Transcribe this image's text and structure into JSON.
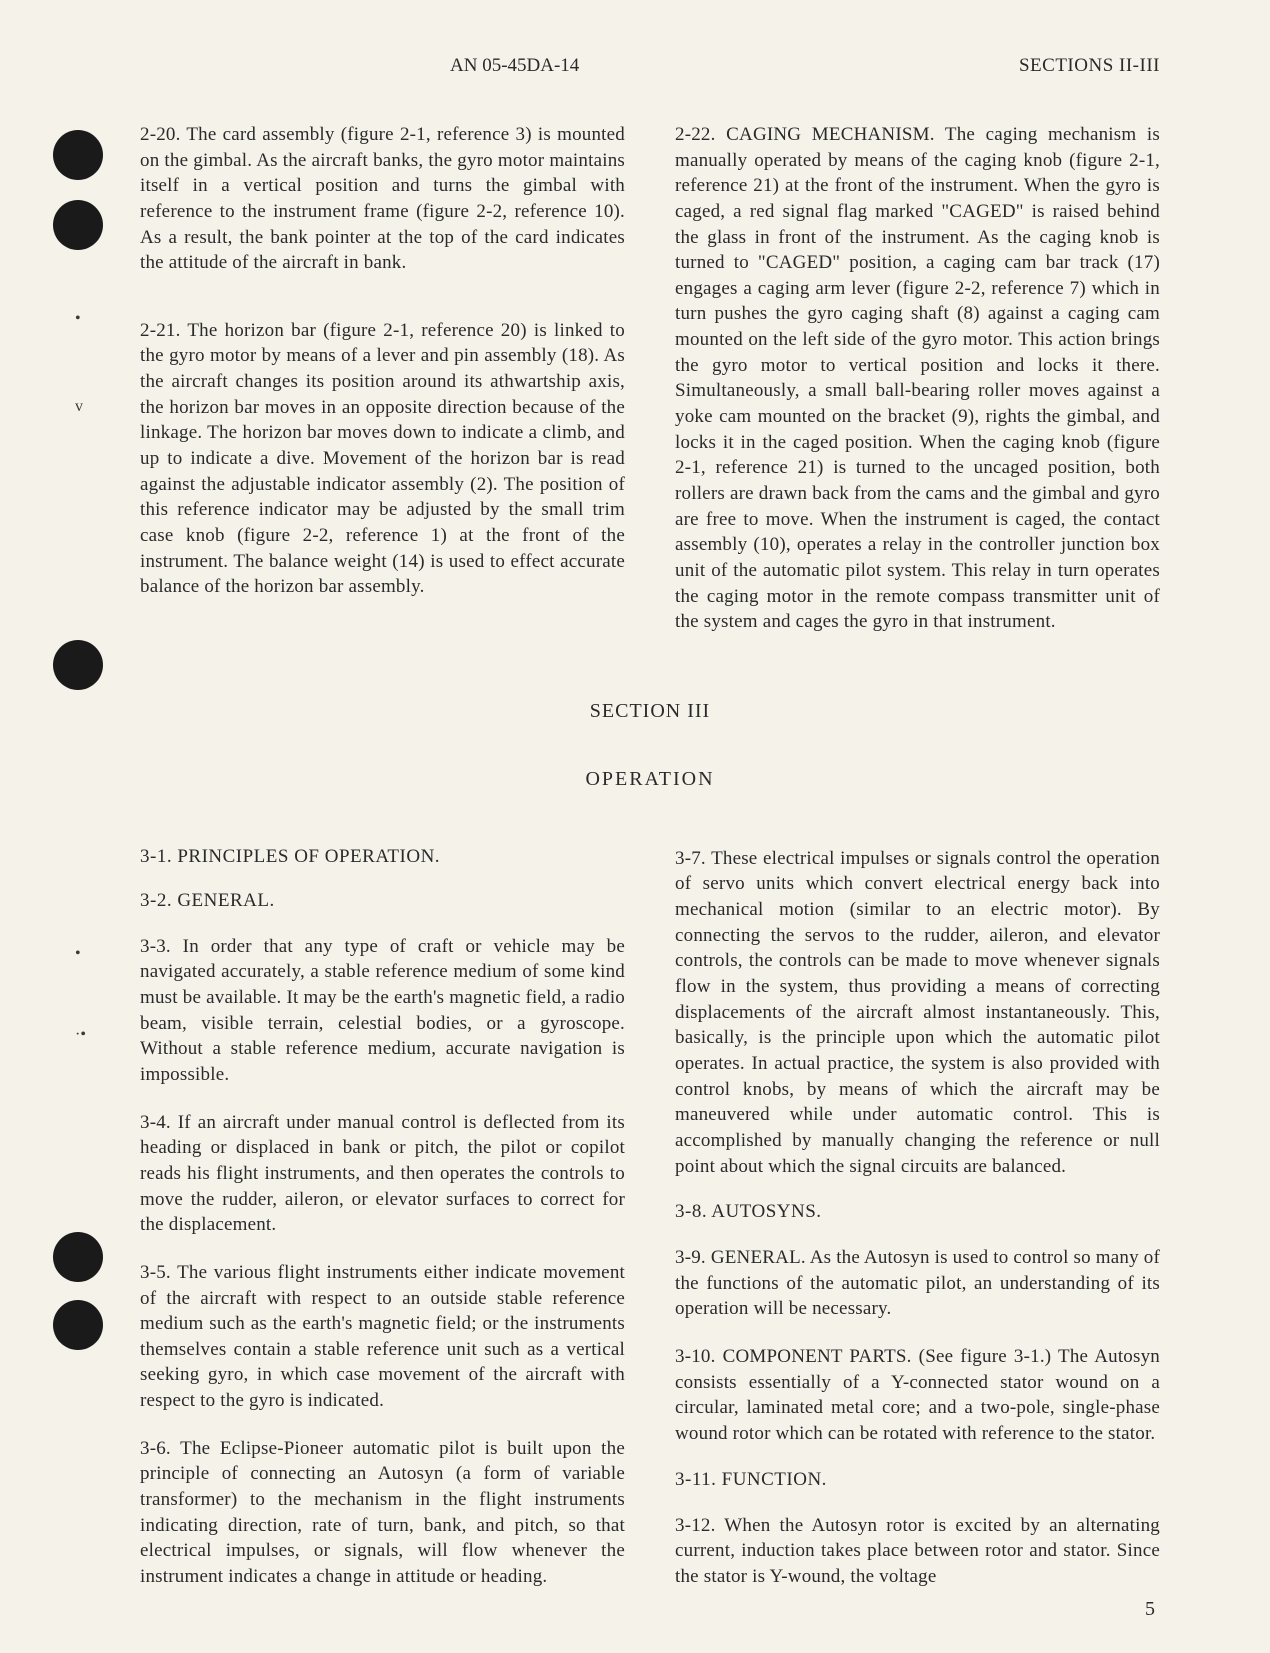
{
  "header": {
    "doc_number": "AN 05-45DA-14",
    "section_label": "SECTIONS II-III"
  },
  "upper": {
    "left": {
      "p1": "2-20. The card assembly (figure 2-1, reference 3) is mounted on the gimbal. As the aircraft banks, the gyro motor maintains itself in a vertical position and turns the gimbal with reference to the instrument frame (figure 2-2, reference 10). As a result, the bank pointer at the top of the card indicates the attitude of the aircraft in bank.",
      "p2": "2-21. The horizon bar (figure 2-1, reference 20) is linked to the gyro motor by means of a lever and pin assembly (18). As the aircraft changes its position around its athwartship axis, the horizon bar moves in an opposite direction because of the linkage. The horizon bar moves down to indicate a climb, and up to indicate a dive. Movement of the horizon bar is read against the adjustable indicator assembly (2). The position of this reference indicator may be adjusted by the small trim case knob (figure 2-2, reference 1) at the front of the instrument. The balance weight (14) is used to effect accurate balance of the horizon bar assembly."
    },
    "right": {
      "p1": "2-22. CAGING MECHANISM. The caging mechanism is manually operated by means of the caging knob (figure 2-1, reference 21) at the front of the instrument. When the gyro is caged, a red signal flag marked \"CAGED\" is raised behind the glass in front of the instrument. As the caging knob is turned to \"CAGED\" position, a caging cam bar track (17) engages a caging arm lever (figure 2-2, reference 7) which in turn pushes the gyro caging shaft (8) against a caging cam mounted on the left side of the gyro motor. This action brings the gyro motor to vertical position and locks it there. Simultaneously, a small ball-bearing roller moves against a yoke cam mounted on the bracket (9), rights the gimbal, and locks it in the caged position. When the caging knob (figure 2-1, reference 21) is turned to the uncaged position, both rollers are drawn back from the cams and the gimbal and gyro are free to move. When the instrument is caged, the contact assembly (10), operates a relay in the controller junction box unit of the automatic pilot system. This relay in turn operates the caging motor in the remote compass transmitter unit of the system and cages the gyro in that instrument."
    }
  },
  "section3": {
    "title": "SECTION III",
    "subtitle": "OPERATION"
  },
  "lower": {
    "left": {
      "h1": "3-1. PRINCIPLES OF OPERATION.",
      "h2": "3-2. GENERAL.",
      "p3": "3-3. In order that any type of craft or vehicle may be navigated accurately, a stable reference medium of some kind must be available. It may be the earth's magnetic field, a radio beam, visible terrain, celestial bodies, or a gyroscope. Without a stable reference medium, accurate navigation is impossible.",
      "p4": "3-4. If an aircraft under manual control is deflected from its heading or displaced in bank or pitch, the pilot or copilot reads his flight instruments, and then operates the controls to move the rudder, aileron, or elevator surfaces to correct for the displacement.",
      "p5": "3-5. The various flight instruments either indicate movement of the aircraft with respect to an outside stable reference medium such as the earth's magnetic field; or the instruments themselves contain a stable reference unit such as a vertical seeking gyro, in which case movement of the aircraft with respect to the gyro is indicated.",
      "p6": "3-6. The Eclipse-Pioneer automatic pilot is built upon the principle of connecting an Autosyn (a form of variable transformer) to the mechanism in the flight instruments indicating direction, rate of turn, bank, and pitch, so that electrical impulses, or signals, will flow whenever the instrument indicates a change in attitude or heading."
    },
    "right": {
      "p7": "3-7. These electrical impulses or signals control the operation of servo units which convert electrical energy back into mechanical motion (similar to an electric motor). By connecting the servos to the rudder, aileron, and elevator controls, the controls can be made to move whenever signals flow in the system, thus providing a means of correcting displacements of the aircraft almost instantaneously. This, basically, is the principle upon which the automatic pilot operates. In actual practice, the system is also provided with control knobs, by means of which the aircraft may be maneuvered while under automatic control. This is accomplished by manually changing the reference or null point about which the signal circuits are balanced.",
      "h8": "3-8. AUTOSYNS.",
      "p9": "3-9. GENERAL. As the Autosyn is used to control so many of the functions of the automatic pilot, an understanding of its operation will be necessary.",
      "p10": "3-10. COMPONENT PARTS. (See figure 3-1.) The Autosyn consists essentially of a Y-connected stator wound on a circular, laminated metal core; and a two-pole, single-phase wound rotor which can be rotated with reference to the stator.",
      "h11": "3-11. FUNCTION.",
      "p12": "3-12. When the Autosyn rotor is excited by an alternating current, induction takes place between rotor and stator. Since the stator is Y-wound, the voltage"
    }
  },
  "page_number": "5"
}
